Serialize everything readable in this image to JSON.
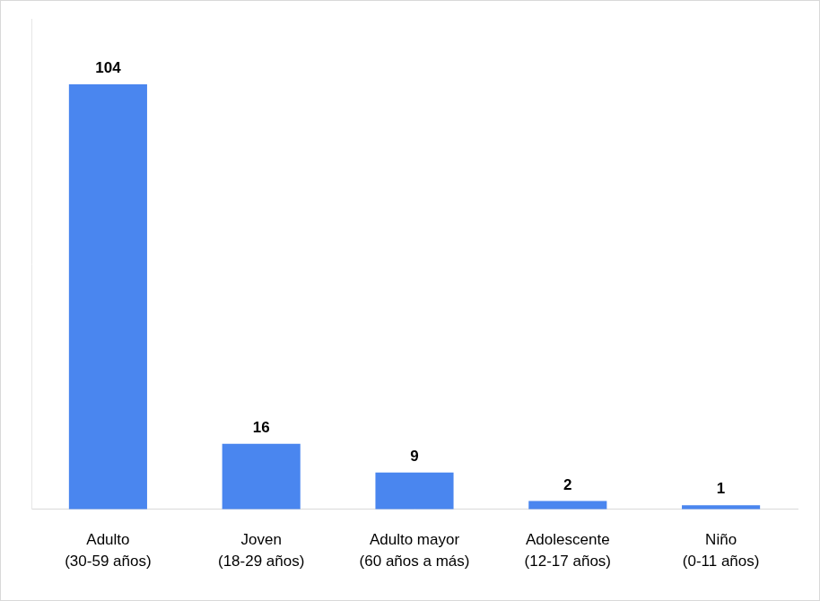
{
  "chart_data": {
    "type": "bar",
    "categories": [
      [
        "Adulto",
        "(30-59 años)"
      ],
      [
        "Joven",
        "(18-29 años)"
      ],
      [
        "Adulto mayor",
        "(60 años a más)"
      ],
      [
        "Adolescente",
        "(12-17 años)"
      ],
      [
        "Niño",
        "(0-11 años)"
      ]
    ],
    "values": [
      104,
      16,
      9,
      2,
      1
    ],
    "color": "#4a86ef",
    "ylim": [
      0,
      120
    ],
    "grid": false,
    "data_labels": true,
    "tick_labels": "x"
  }
}
